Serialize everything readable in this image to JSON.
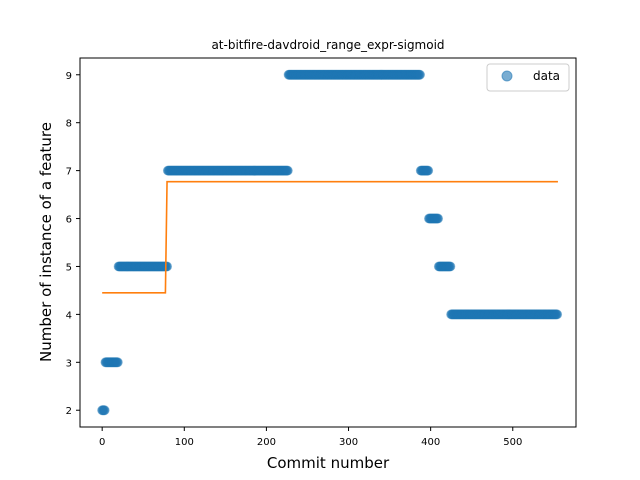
{
  "chart_data": {
    "type": "scatter",
    "title": "at-bitfire-davdroid_range_expr-sigmoid",
    "xlabel": "Commit number",
    "ylabel": "Number of instance of a feature",
    "xlim": [
      -27,
      577
    ],
    "ylim": [
      1.65,
      9.35
    ],
    "xticks": [
      0,
      100,
      200,
      300,
      400,
      500
    ],
    "yticks": [
      2,
      3,
      4,
      5,
      6,
      7,
      8,
      9
    ],
    "grid": false,
    "legend": {
      "placement": "top-right",
      "entries": [
        "data"
      ]
    },
    "colors": {
      "data": "#1f77b4",
      "fit": "#ff7f0e"
    },
    "series": [
      {
        "name": "data",
        "kind": "scatter",
        "segments": [
          {
            "x_start": 0,
            "x_end": 4,
            "y": 2
          },
          {
            "x_start": 4,
            "x_end": 20,
            "y": 3
          },
          {
            "x_start": 20,
            "x_end": 80,
            "y": 5
          },
          {
            "x_start": 80,
            "x_end": 227,
            "y": 7
          },
          {
            "x_start": 227,
            "x_end": 388,
            "y": 9
          },
          {
            "x_start": 388,
            "x_end": 398,
            "y": 7
          },
          {
            "x_start": 398,
            "x_end": 410,
            "y": 6
          },
          {
            "x_start": 410,
            "x_end": 425,
            "y": 5
          },
          {
            "x_start": 425,
            "x_end": 555,
            "y": 4
          }
        ]
      },
      {
        "kind": "line",
        "points": [
          [
            0,
            4.45
          ],
          [
            77,
            4.45
          ],
          [
            79,
            6.77
          ],
          [
            555,
            6.77
          ]
        ]
      }
    ]
  }
}
